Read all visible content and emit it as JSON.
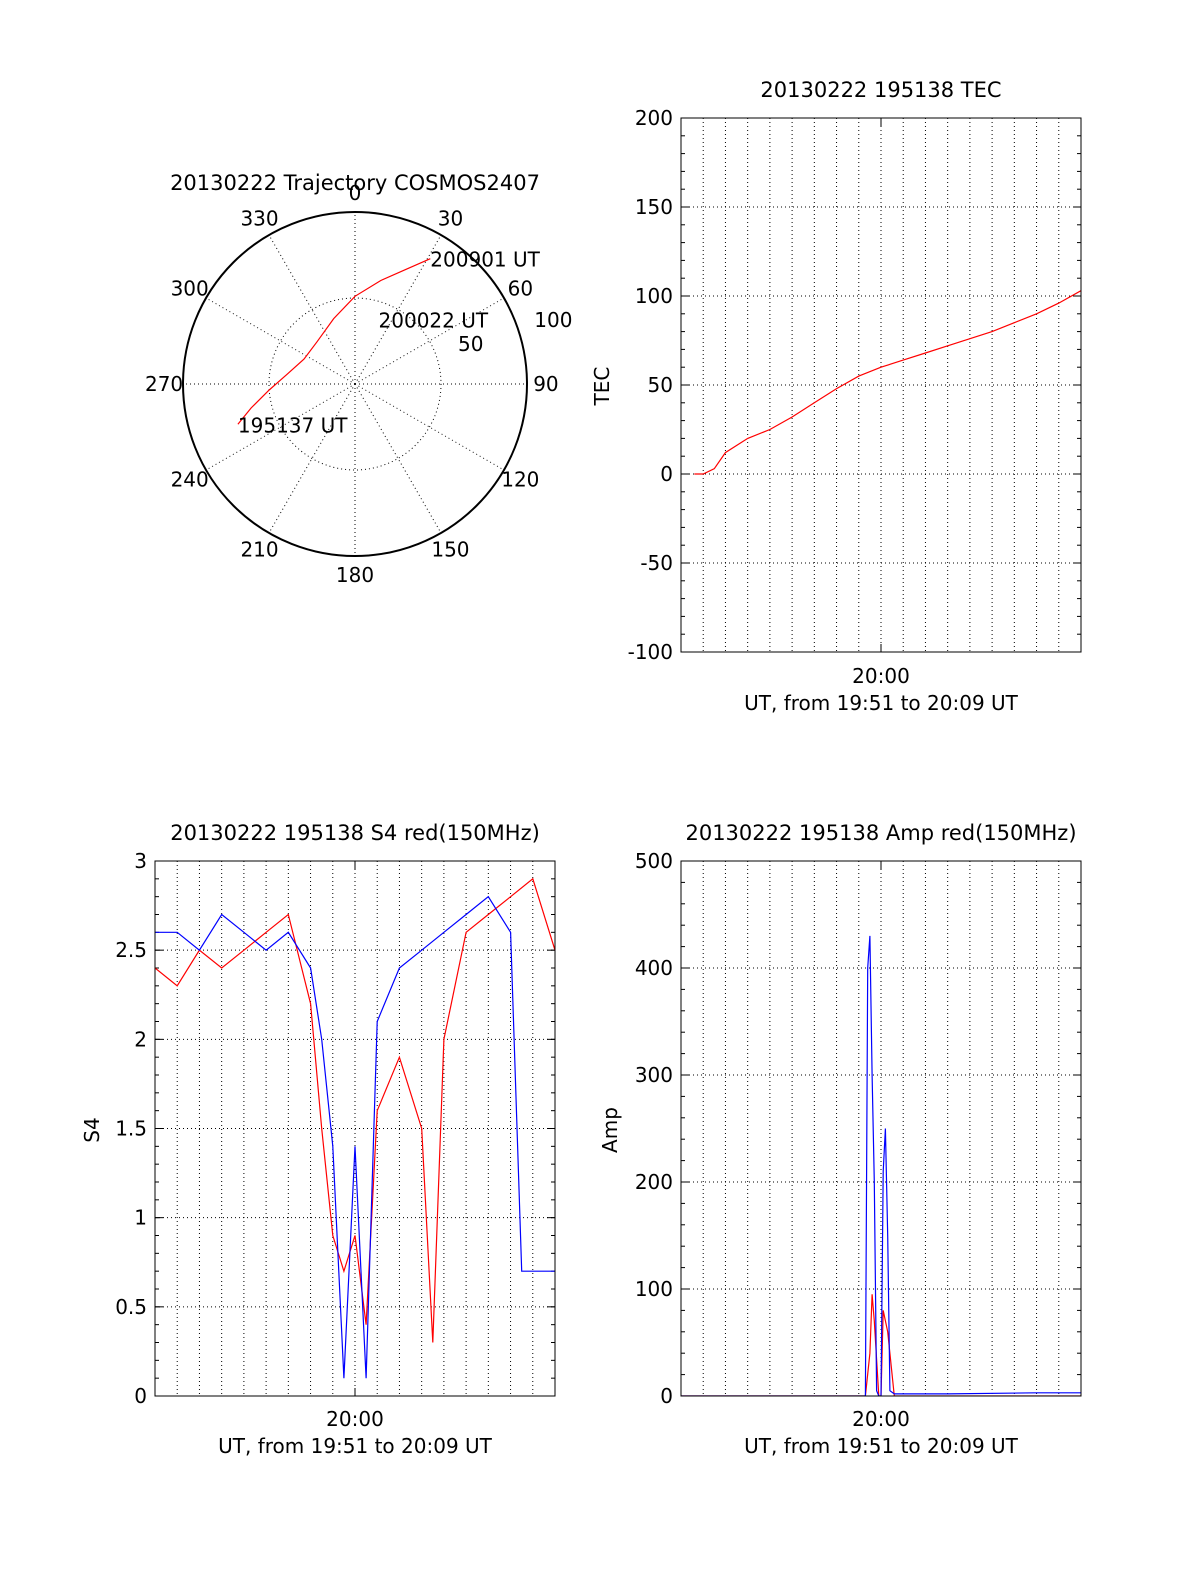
{
  "chart_data": [
    {
      "type": "polar",
      "title": "20130222 Trajectory COSMOS2407",
      "angle_labels": [
        "0",
        "30",
        "60",
        "90",
        "120",
        "150",
        "180",
        "210",
        "240",
        "270",
        "300",
        "330"
      ],
      "ring_labels": [
        "50",
        "100"
      ],
      "elevation_rings": [
        50,
        100
      ],
      "trajectory": {
        "color": "#ff0000",
        "points": [
          {
            "azimuth": 251,
            "radius": 72
          },
          {
            "azimuth": 257,
            "radius": 62
          },
          {
            "azimuth": 266,
            "radius": 50
          },
          {
            "azimuth": 278,
            "radius": 40
          },
          {
            "azimuth": 296,
            "radius": 33
          },
          {
            "azimuth": 318,
            "radius": 33
          },
          {
            "azimuth": 342,
            "radius": 40
          },
          {
            "azimuth": 0,
            "radius": 51
          },
          {
            "azimuth": 14,
            "radius": 62
          },
          {
            "azimuth": 24,
            "radius": 73
          },
          {
            "azimuth": 31,
            "radius": 85
          }
        ]
      },
      "annotations": [
        {
          "text": "200901 UT",
          "azimuth": 31,
          "radius": 85
        },
        {
          "text": "200022 UT",
          "azimuth": 20,
          "radius": 40
        },
        {
          "text": "195137 UT",
          "azimuth": 251,
          "radius": 72
        }
      ]
    },
    {
      "type": "line",
      "title": "20130222 195138 TEC",
      "xlabel": "UT, from 19:51 to 20:09 UT",
      "ylabel": "TEC",
      "xlim": [
        0,
        18
      ],
      "ylim": [
        -100,
        200
      ],
      "yticks": [
        -100,
        -50,
        0,
        50,
        100,
        150,
        200
      ],
      "ytick_labels": [
        "-100",
        "-50",
        "0",
        "50",
        "100",
        "150",
        "200"
      ],
      "xticks": [
        9
      ],
      "xtick_labels": [
        "20:00"
      ],
      "grid": true,
      "series": [
        {
          "color": "#ff0000",
          "x": [
            0.6,
            1.0,
            1.5,
            2.0,
            3.0,
            4.0,
            5.0,
            6.0,
            7.0,
            8.0,
            9.0,
            10.0,
            11.0,
            12.0,
            13.0,
            14.0,
            15.0,
            16.0,
            17.0,
            18.0
          ],
          "y": [
            0,
            0,
            3,
            12,
            20,
            25,
            32,
            40,
            48,
            55,
            60,
            64,
            68,
            72,
            76,
            80,
            85,
            90,
            96,
            103
          ]
        }
      ]
    },
    {
      "type": "line",
      "title": "20130222 195138 S4 red(150MHz)",
      "xlabel": "UT, from 19:51 to 20:09 UT",
      "ylabel": "S4",
      "xlim": [
        0,
        18
      ],
      "ylim": [
        0,
        3
      ],
      "yticks": [
        0,
        0.5,
        1,
        1.5,
        2,
        2.5,
        3
      ],
      "ytick_labels": [
        "0",
        "0.5",
        "1",
        "1.5",
        "2",
        "2.5",
        "3"
      ],
      "xticks": [
        9
      ],
      "xtick_labels": [
        "20:00"
      ],
      "grid": true,
      "series": [
        {
          "color": "#ff0000",
          "x": [
            0.0,
            1.0,
            2.0,
            3.0,
            4.0,
            5.0,
            6.0,
            7.0,
            7.5,
            8.0,
            8.5,
            9.0,
            9.5,
            10.0,
            11.0,
            12.0,
            12.5,
            13.0,
            14.0,
            15.0,
            16.0,
            17.0,
            18.0
          ],
          "y": [
            2.4,
            2.3,
            2.5,
            2.4,
            2.5,
            2.6,
            2.7,
            2.2,
            1.5,
            0.9,
            0.7,
            0.9,
            0.4,
            1.6,
            1.9,
            1.5,
            0.3,
            2.0,
            2.6,
            2.7,
            2.8,
            2.9,
            2.5
          ]
        },
        {
          "color": "#0000ff",
          "x": [
            0.0,
            1.0,
            2.0,
            3.0,
            4.0,
            5.0,
            6.0,
            7.0,
            7.5,
            8.0,
            8.5,
            9.0,
            9.5,
            10.0,
            11.0,
            12.0,
            13.0,
            14.0,
            15.0,
            16.0,
            16.5,
            17.0,
            18.0
          ],
          "y": [
            2.6,
            2.6,
            2.5,
            2.7,
            2.6,
            2.5,
            2.6,
            2.4,
            2.0,
            1.4,
            0.1,
            1.4,
            0.1,
            2.1,
            2.4,
            2.5,
            2.6,
            2.7,
            2.8,
            2.6,
            0.7,
            0.7,
            0.7
          ]
        }
      ]
    },
    {
      "type": "line",
      "title": "20130222 195138 Amp red(150MHz)",
      "xlabel": "UT, from 19:51 to 20:09 UT",
      "ylabel": "Amp",
      "xlim": [
        0,
        18
      ],
      "ylim": [
        0,
        500
      ],
      "yticks": [
        0,
        100,
        200,
        300,
        400,
        500
      ],
      "ytick_labels": [
        "0",
        "100",
        "200",
        "300",
        "400",
        "500"
      ],
      "xticks": [
        9
      ],
      "xtick_labels": [
        "20:00"
      ],
      "grid": true,
      "series": [
        {
          "color": "#ff0000",
          "x": [
            0.0,
            8.3,
            8.5,
            8.6,
            8.7,
            8.9,
            9.0,
            9.1,
            9.3,
            9.6,
            9.8,
            10.0,
            18.0
          ],
          "y": [
            0,
            0,
            40,
            95,
            70,
            0,
            0,
            80,
            60,
            0,
            0,
            0,
            0
          ]
        },
        {
          "color": "#0000ff",
          "x": [
            0.0,
            8.3,
            8.4,
            8.5,
            8.6,
            8.7,
            8.8,
            8.9,
            9.0,
            9.1,
            9.2,
            9.3,
            9.4,
            9.6,
            9.8,
            12.0,
            16.0,
            18.0
          ],
          "y": [
            0,
            0,
            400,
            430,
            300,
            200,
            5,
            0,
            0,
            210,
            250,
            150,
            5,
            2,
            2,
            2,
            3,
            3
          ]
        }
      ]
    }
  ]
}
